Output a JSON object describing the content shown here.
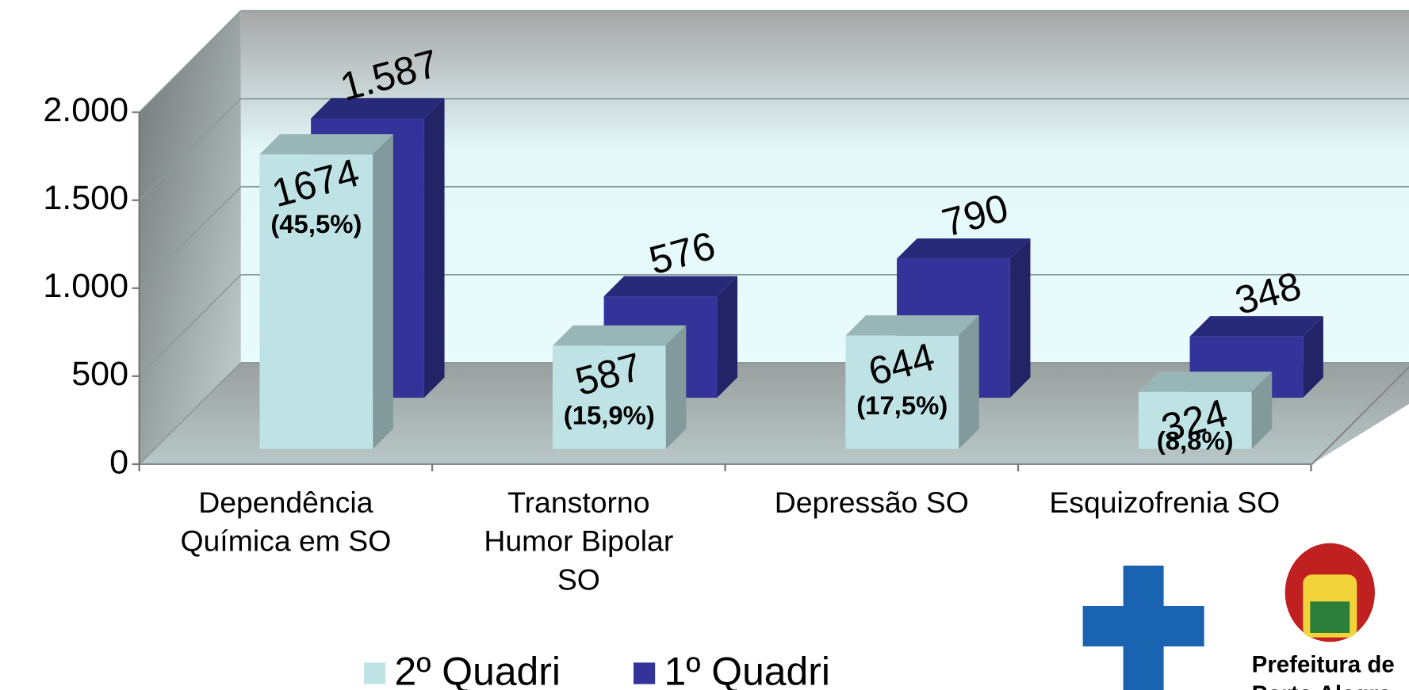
{
  "chart_data": {
    "type": "bar3d",
    "categories": [
      "Dependência\nQuímica em SO",
      "Transtorno\nHumor Bipolar\nSO",
      "Depressão SO",
      "Esquizofrenia SO"
    ],
    "series": [
      {
        "name": "2º Quadri",
        "color": "#bfe3e4",
        "values": [
          1674,
          587,
          644,
          324
        ],
        "percent_labels": [
          "(45,5%)",
          "(15,9%)",
          "(17,5%)",
          "(8,8%)"
        ]
      },
      {
        "name": "1º Quadri",
        "color": "#333399",
        "values": [
          1587,
          576,
          790,
          348
        ],
        "value_labels": [
          "1.587",
          "576",
          "790",
          "348"
        ]
      }
    ],
    "ylim": [
      0,
      2000
    ],
    "yticks": [
      0,
      500,
      {
        "value": 1000,
        "label": "1.000"
      },
      {
        "value": 1500,
        "label": "1.500"
      },
      {
        "value": 2000,
        "label": "2.000"
      }
    ],
    "grid": true,
    "legend": "bottom"
  },
  "logo": {
    "lines": [
      "Prefeitura de",
      "Porto Alegre"
    ]
  }
}
